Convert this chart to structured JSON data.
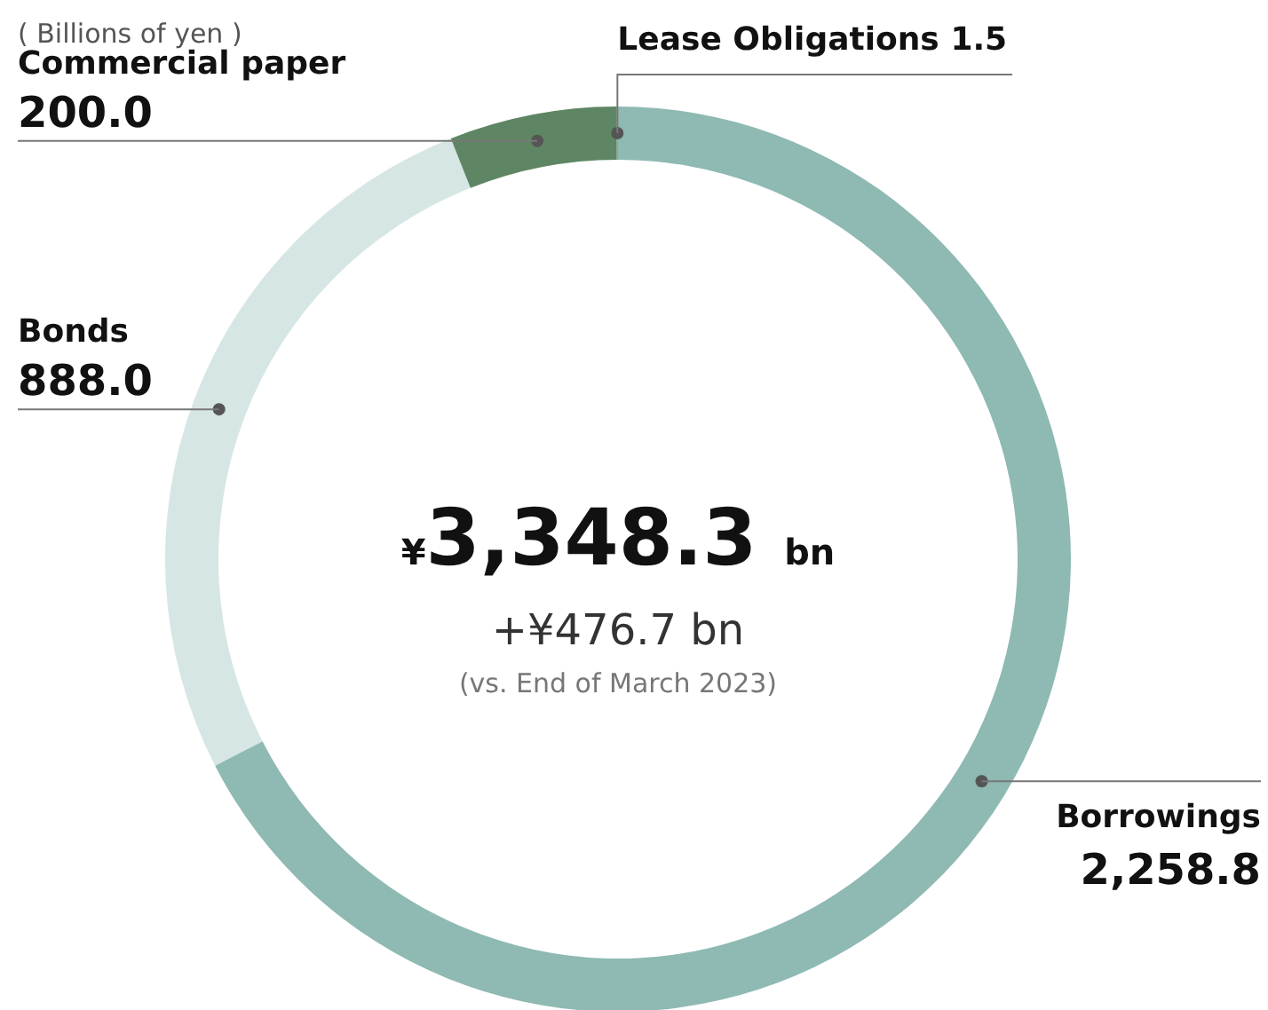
{
  "chart_data": {
    "type": "donut",
    "title": "¥3,348.3 bn",
    "subtitle": "( Billions of yen )",
    "annotations": [
      "+¥476.7 bn",
      "(vs. End of March 2023)"
    ],
    "categories": [
      "Borrowings",
      "Bonds",
      "Commercial paper",
      "Lease Obligations"
    ],
    "values": [
      2258.8,
      888.0,
      200.0,
      1.5
    ],
    "value_labels": [
      "2,258.8",
      "888.0",
      "200.0",
      "1.5"
    ],
    "colors": [
      "#8fb9b3",
      "#d6e6e5",
      "#5f8664",
      "#7fae87"
    ]
  }
}
